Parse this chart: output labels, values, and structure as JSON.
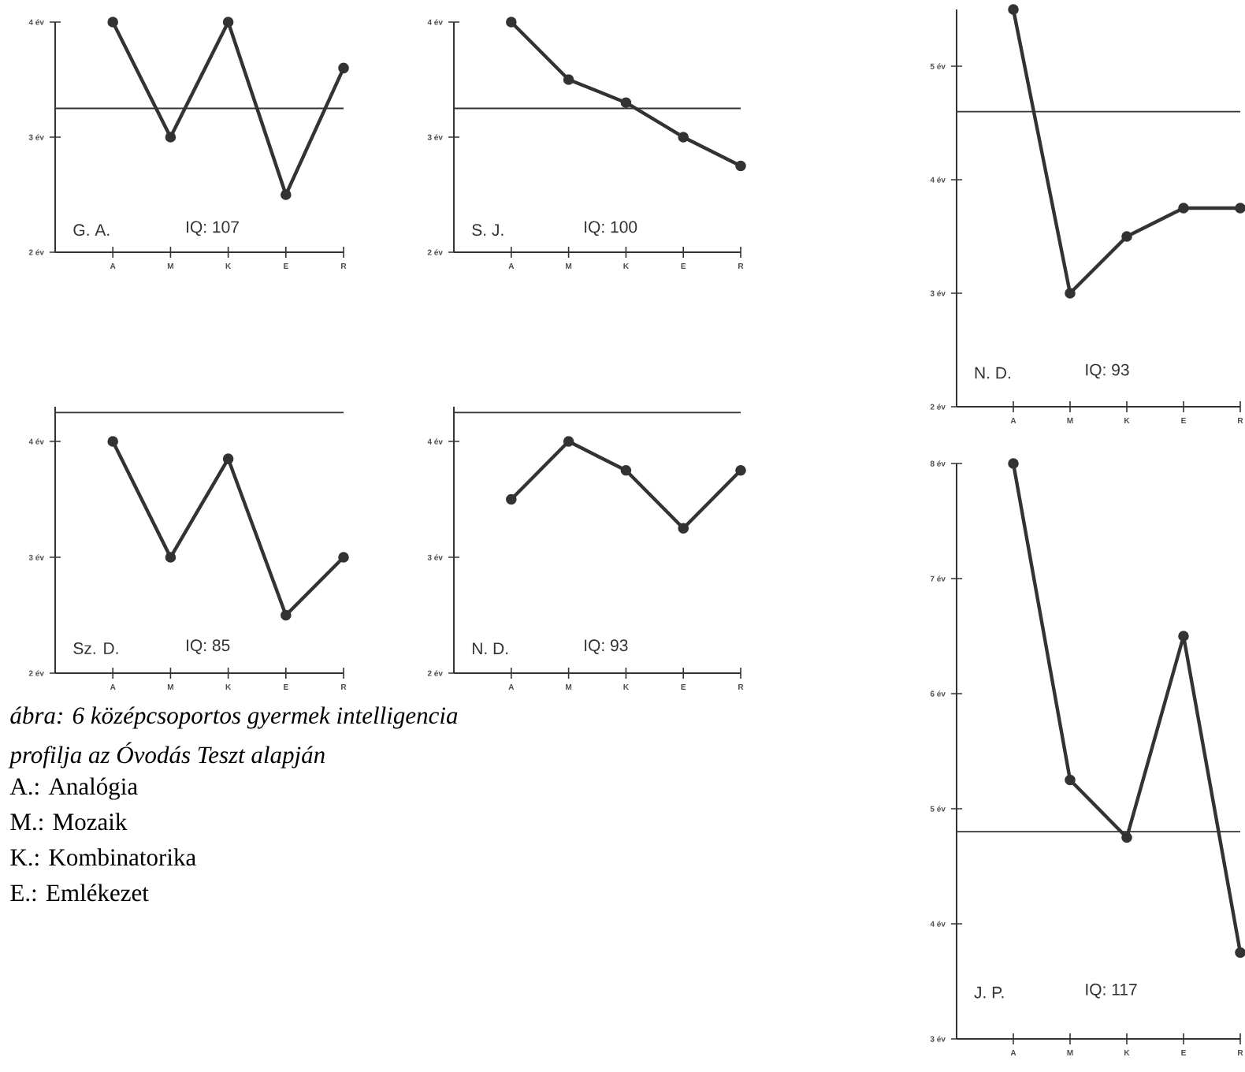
{
  "chart_data": [
    {
      "type": "line",
      "categories": [
        "A",
        "M",
        "K",
        "E",
        "R"
      ],
      "ylim": [
        2,
        4
      ],
      "yticks": [
        {
          "value": 2,
          "label": "2 év"
        },
        {
          "value": 3,
          "label": "3 év"
        },
        {
          "value": 4,
          "label": "4 év"
        }
      ],
      "marker": "circle",
      "line_style": "solid",
      "series": [
        {
          "color": "#333333",
          "values": [
            4,
            3,
            4,
            2.5,
            3.6
          ]
        }
      ],
      "ref_lines": [
        {
          "axis": "y",
          "value": 3.25
        }
      ],
      "annotations": [
        "G. A.",
        "IQ: 107"
      ]
    },
    {
      "type": "line",
      "categories": [
        "A",
        "M",
        "K",
        "E",
        "R"
      ],
      "ylim": [
        2,
        4
      ],
      "yticks": [
        {
          "value": 2,
          "label": "2 év"
        },
        {
          "value": 3,
          "label": "3 év"
        },
        {
          "value": 4,
          "label": "4 év"
        }
      ],
      "marker": "circle",
      "line_style": "solid",
      "series": [
        {
          "color": "#333333",
          "values": [
            4,
            3.5,
            3.3,
            3,
            2.75
          ]
        }
      ],
      "ref_lines": [
        {
          "axis": "y",
          "value": 3.25
        }
      ],
      "annotations": [
        "S. J.",
        "IQ: 100"
      ]
    },
    {
      "type": "line",
      "categories": [
        "A",
        "M",
        "K",
        "E",
        "R"
      ],
      "ylim": [
        2,
        4.3
      ],
      "yticks": [
        {
          "value": 2,
          "label": "2 év"
        },
        {
          "value": 3,
          "label": "3 év"
        },
        {
          "value": 4,
          "label": "4 év"
        }
      ],
      "marker": "circle",
      "line_style": "solid",
      "series": [
        {
          "color": "#333333",
          "values": [
            4,
            3,
            3.85,
            2.5,
            3
          ]
        }
      ],
      "ref_lines": [
        {
          "axis": "y",
          "value": 4.25
        }
      ],
      "annotations": [
        "Sz. D.",
        "IQ: 85"
      ]
    },
    {
      "type": "line",
      "categories": [
        "A",
        "M",
        "K",
        "E",
        "R"
      ],
      "ylim": [
        2,
        4.3
      ],
      "yticks": [
        {
          "value": 2,
          "label": "2 év"
        },
        {
          "value": 3,
          "label": "3 év"
        },
        {
          "value": 4,
          "label": "4 év"
        }
      ],
      "marker": "circle",
      "line_style": "solid",
      "series": [
        {
          "color": "#333333",
          "values": [
            3.5,
            4,
            3.75,
            3.25,
            3.75
          ]
        }
      ],
      "ref_lines": [
        {
          "axis": "y",
          "value": 4.25
        }
      ],
      "annotations": [
        "N. D.",
        "IQ: 93"
      ]
    },
    {
      "type": "line",
      "categories": [
        "A",
        "M",
        "K",
        "E",
        "R"
      ],
      "ylim": [
        2,
        5.5
      ],
      "yticks": [
        {
          "value": 2,
          "label": "2 év"
        },
        {
          "value": 3,
          "label": "3 év"
        },
        {
          "value": 4,
          "label": "4 év"
        },
        {
          "value": 5,
          "label": "5 év"
        }
      ],
      "marker": "circle",
      "line_style": "solid",
      "series": [
        {
          "color": "#333333",
          "values": [
            5.5,
            3,
            3.5,
            3.75,
            3.75
          ]
        }
      ],
      "ref_lines": [
        {
          "axis": "y",
          "value": 4.6
        }
      ],
      "annotations": [
        "N. D.",
        "IQ: 93"
      ]
    },
    {
      "type": "line",
      "categories": [
        "A",
        "M",
        "K",
        "E",
        "R"
      ],
      "ylim": [
        3,
        8
      ],
      "yticks": [
        {
          "value": 3,
          "label": "3 év"
        },
        {
          "value": 4,
          "label": "4 év"
        },
        {
          "value": 5,
          "label": "5 év"
        },
        {
          "value": 6,
          "label": "6 év"
        },
        {
          "value": 7,
          "label": "7 év"
        },
        {
          "value": 8,
          "label": "8 év"
        }
      ],
      "marker": "circle",
      "line_style": "solid",
      "series": [
        {
          "color": "#333333",
          "values": [
            8,
            5.25,
            4.75,
            6.5,
            3.75
          ]
        }
      ],
      "ref_lines": [
        {
          "axis": "y",
          "value": 4.8
        }
      ],
      "annotations": [
        "J. P.",
        "IQ: 117"
      ]
    },
    {
      "type": "other",
      "annotations": [
        "ábra: 6 középcsoportos gyermek intelligencia",
        "profilja az Óvodás Teszt alapján",
        "A.: Analógia",
        "M.: Mozaik",
        "K.: Kombinatorika",
        "E.: Emlékezet"
      ]
    }
  ]
}
